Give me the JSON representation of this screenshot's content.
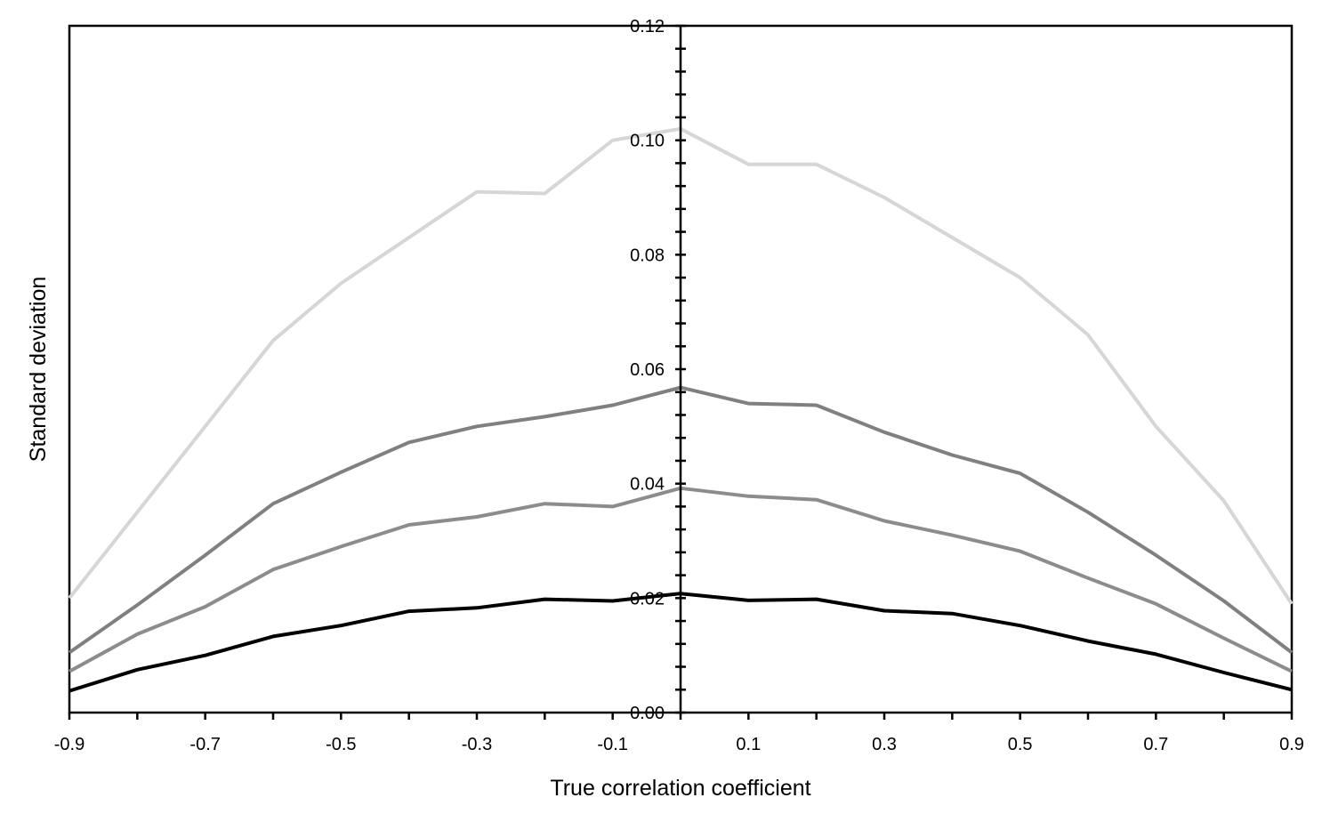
{
  "chart_data": {
    "type": "line",
    "title": "",
    "xlabel": "True correlation coefficient",
    "ylabel": "Standard deviation",
    "xlim": [
      -0.9,
      0.9
    ],
    "ylim": [
      0.0,
      0.12
    ],
    "x_tick_labels": [
      "-0.9",
      "-0.7",
      "-0.5",
      "-0.3",
      "-0.1",
      "0.1",
      "0.3",
      "0.5",
      "0.7",
      "0.9"
    ],
    "y_tick_labels": [
      "0.00",
      "0.02",
      "0.04",
      "0.06",
      "0.08",
      "0.10",
      "0.12"
    ],
    "grid": false,
    "legend": "none",
    "x": [
      -0.9,
      -0.8,
      -0.7,
      -0.6,
      -0.5,
      -0.4,
      -0.3,
      -0.2,
      -0.1,
      0.0,
      0.1,
      0.2,
      0.3,
      0.4,
      0.5,
      0.6,
      0.7,
      0.8,
      0.9
    ],
    "series": [
      {
        "color": "#d6d6d6",
        "values": [
          0.02,
          0.035,
          0.05,
          0.065,
          0.075,
          0.083,
          0.091,
          0.0907,
          0.1,
          0.102,
          0.0958,
          0.0958,
          0.09,
          0.083,
          0.076,
          0.066,
          0.05,
          0.037,
          0.019
        ]
      },
      {
        "color": "#808080",
        "values": [
          0.0105,
          0.0188,
          0.0275,
          0.0365,
          0.042,
          0.0472,
          0.05,
          0.0517,
          0.0537,
          0.0568,
          0.054,
          0.0537,
          0.049,
          0.045,
          0.0418,
          0.035,
          0.0275,
          0.0195,
          0.0105
        ]
      },
      {
        "color": "#8c8c8c",
        "values": [
          0.0072,
          0.0137,
          0.0185,
          0.025,
          0.029,
          0.0328,
          0.0342,
          0.0365,
          0.036,
          0.0392,
          0.0378,
          0.0372,
          0.0335,
          0.031,
          0.0282,
          0.0235,
          0.019,
          0.013,
          0.0072
        ]
      },
      {
        "color": "#000000",
        "values": [
          0.0038,
          0.0075,
          0.01,
          0.0133,
          0.0152,
          0.0177,
          0.0183,
          0.0198,
          0.0195,
          0.0208,
          0.0196,
          0.0198,
          0.0178,
          0.0173,
          0.0152,
          0.0125,
          0.0102,
          0.007,
          0.004
        ]
      }
    ]
  }
}
